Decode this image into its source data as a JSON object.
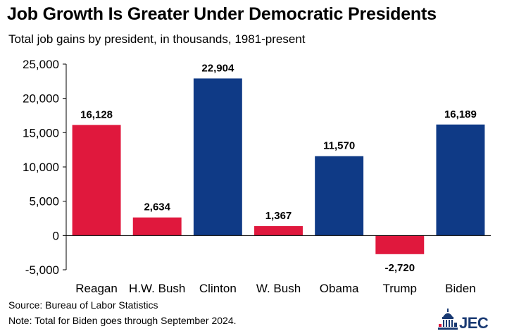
{
  "title": "Job Growth Is Greater Under Democratic Presidents",
  "subtitle": "Total job gains by president, in thousands, 1981-present",
  "source": "Source: Bureau of Labor Statistics",
  "note": "Note: Total for Biden goes through September 2024.",
  "logo_text": "JEC",
  "colors": {
    "republican": "#e0183d",
    "democrat": "#0f3a86"
  },
  "chart_data": {
    "type": "bar",
    "categories": [
      "Reagan",
      "H.W. Bush",
      "Clinton",
      "W. Bush",
      "Obama",
      "Trump",
      "Biden"
    ],
    "values": [
      16128,
      2634,
      22904,
      1367,
      11570,
      -2720,
      16189
    ],
    "value_labels": [
      "16,128",
      "2,634",
      "22,904",
      "1,367",
      "11,570",
      "-2,720",
      "16,189"
    ],
    "party": [
      "republican",
      "republican",
      "democrat",
      "republican",
      "democrat",
      "republican",
      "democrat"
    ],
    "ylim": [
      -5000,
      25000
    ],
    "yticks": [
      -5000,
      0,
      5000,
      10000,
      15000,
      20000,
      25000
    ],
    "ytick_labels": [
      "-5,000",
      "0",
      "5,000",
      "10,000",
      "15,000",
      "20,000",
      "25,000"
    ],
    "xlabel": "",
    "ylabel": "",
    "grid": false,
    "legend": "none"
  }
}
